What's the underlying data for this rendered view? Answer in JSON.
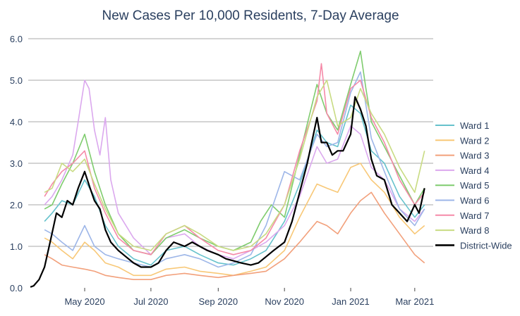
{
  "chart_data": {
    "type": "line",
    "title": "New Cases Per 10,000 Residents, 7-Day Average",
    "xlabel": "",
    "ylabel": "",
    "x_range": [
      "2020-03-10",
      "2021-03-18"
    ],
    "ylim": [
      0,
      6
    ],
    "y_ticks": [
      0,
      1,
      2,
      3,
      4,
      5,
      6
    ],
    "y_tick_labels": [
      "0.0",
      "1.0",
      "2.0",
      "3.0",
      "4.0",
      "5.0",
      "6.0"
    ],
    "x_ticks": [
      "2020-05-01",
      "2020-07-01",
      "2020-09-01",
      "2020-11-01",
      "2021-01-01",
      "2021-03-01"
    ],
    "x_tick_labels": [
      "May 2020",
      "Jul 2020",
      "Sep 2020",
      "Nov 2020",
      "Jan 2021",
      "Mar 2021"
    ],
    "grid": "horizontal",
    "legend_position": "right",
    "series": [
      {
        "name": "Ward 1",
        "color": "#66c2cc",
        "width": 1.6,
        "x": [
          "2020-03-25",
          "2020-04-01",
          "2020-04-10",
          "2020-04-20",
          "2020-05-01",
          "2020-05-10",
          "2020-05-20",
          "2020-06-01",
          "2020-06-15",
          "2020-07-01",
          "2020-07-15",
          "2020-08-01",
          "2020-08-15",
          "2020-09-01",
          "2020-09-15",
          "2020-10-01",
          "2020-10-15",
          "2020-11-01",
          "2020-11-15",
          "2020-12-01",
          "2020-12-10",
          "2020-12-20",
          "2021-01-01",
          "2021-01-10",
          "2021-01-20",
          "2021-02-01",
          "2021-02-15",
          "2021-03-01",
          "2021-03-10"
        ],
        "y": [
          1.6,
          1.8,
          2.1,
          2.0,
          2.6,
          2.2,
          1.5,
          1.0,
          0.7,
          0.55,
          0.9,
          1.0,
          0.8,
          0.6,
          0.55,
          0.7,
          0.9,
          1.6,
          2.5,
          3.8,
          3.5,
          3.4,
          4.4,
          4.2,
          3.3,
          3.0,
          2.2,
          1.7,
          2.0
        ]
      },
      {
        "name": "Ward 2",
        "color": "#f8c877",
        "width": 1.6,
        "x": [
          "2020-03-25",
          "2020-04-01",
          "2020-04-10",
          "2020-04-20",
          "2020-05-01",
          "2020-05-10",
          "2020-05-20",
          "2020-06-01",
          "2020-06-15",
          "2020-07-01",
          "2020-07-15",
          "2020-08-01",
          "2020-08-15",
          "2020-09-01",
          "2020-09-15",
          "2020-10-01",
          "2020-10-15",
          "2020-11-01",
          "2020-11-15",
          "2020-12-01",
          "2020-12-10",
          "2020-12-20",
          "2021-01-01",
          "2021-01-10",
          "2021-01-20",
          "2021-02-01",
          "2021-02-15",
          "2021-03-01",
          "2021-03-10"
        ],
        "y": [
          1.2,
          1.1,
          0.9,
          0.7,
          1.1,
          0.9,
          0.6,
          0.5,
          0.3,
          0.3,
          0.45,
          0.5,
          0.4,
          0.35,
          0.3,
          0.4,
          0.5,
          0.9,
          1.7,
          2.5,
          2.4,
          2.3,
          2.9,
          3.0,
          2.6,
          2.3,
          1.7,
          1.3,
          1.5
        ]
      },
      {
        "name": "Ward 3",
        "color": "#f2a07b",
        "width": 1.6,
        "x": [
          "2020-03-25",
          "2020-04-01",
          "2020-04-10",
          "2020-04-20",
          "2020-05-01",
          "2020-05-10",
          "2020-05-20",
          "2020-06-01",
          "2020-06-15",
          "2020-07-01",
          "2020-07-15",
          "2020-08-01",
          "2020-08-15",
          "2020-09-01",
          "2020-09-15",
          "2020-10-01",
          "2020-10-15",
          "2020-11-01",
          "2020-11-15",
          "2020-12-01",
          "2020-12-10",
          "2020-12-20",
          "2021-01-01",
          "2021-01-10",
          "2021-01-20",
          "2021-02-01",
          "2021-02-15",
          "2021-03-01",
          "2021-03-10"
        ],
        "y": [
          0.8,
          0.7,
          0.55,
          0.5,
          0.45,
          0.4,
          0.3,
          0.25,
          0.2,
          0.2,
          0.3,
          0.35,
          0.3,
          0.25,
          0.3,
          0.35,
          0.4,
          0.7,
          1.1,
          1.6,
          1.5,
          1.3,
          1.8,
          2.1,
          2.3,
          1.8,
          1.3,
          0.8,
          0.6
        ]
      },
      {
        "name": "Ward 4",
        "color": "#dba8ee",
        "width": 1.6,
        "x": [
          "2020-03-25",
          "2020-04-01",
          "2020-04-10",
          "2020-04-20",
          "2020-04-25",
          "2020-05-01",
          "2020-05-05",
          "2020-05-10",
          "2020-05-15",
          "2020-05-20",
          "2020-05-25",
          "2020-06-01",
          "2020-06-15",
          "2020-07-01",
          "2020-07-15",
          "2020-08-01",
          "2020-08-15",
          "2020-09-01",
          "2020-09-15",
          "2020-10-01",
          "2020-10-15",
          "2020-11-01",
          "2020-11-15",
          "2020-12-01",
          "2020-12-10",
          "2020-12-20",
          "2021-01-01",
          "2021-01-10",
          "2021-01-20",
          "2021-02-01",
          "2021-02-15",
          "2021-03-01",
          "2021-03-10"
        ],
        "y": [
          2.0,
          2.2,
          2.6,
          3.2,
          4.0,
          5.0,
          4.8,
          3.8,
          3.2,
          4.1,
          2.6,
          1.8,
          1.2,
          0.8,
          1.2,
          1.3,
          1.0,
          0.8,
          0.7,
          0.9,
          1.1,
          1.5,
          2.2,
          3.4,
          3.0,
          3.1,
          3.9,
          3.7,
          2.9,
          2.6,
          1.9,
          1.6,
          1.9
        ]
      },
      {
        "name": "Ward 5",
        "color": "#7fcc6e",
        "width": 1.6,
        "x": [
          "2020-03-25",
          "2020-04-01",
          "2020-04-10",
          "2020-04-20",
          "2020-05-01",
          "2020-05-10",
          "2020-05-20",
          "2020-06-01",
          "2020-06-15",
          "2020-07-01",
          "2020-07-15",
          "2020-08-01",
          "2020-08-15",
          "2020-09-01",
          "2020-09-15",
          "2020-10-01",
          "2020-10-10",
          "2020-10-20",
          "2020-11-01",
          "2020-11-15",
          "2020-12-01",
          "2020-12-10",
          "2020-12-20",
          "2021-01-01",
          "2021-01-10",
          "2021-01-15",
          "2021-01-20",
          "2021-02-01",
          "2021-02-15",
          "2021-03-01",
          "2021-03-10"
        ],
        "y": [
          1.9,
          2.0,
          2.5,
          3.0,
          3.7,
          2.8,
          2.0,
          1.3,
          0.9,
          0.8,
          1.2,
          1.4,
          1.2,
          1.0,
          0.9,
          1.1,
          1.6,
          2.0,
          1.7,
          3.2,
          4.9,
          4.2,
          3.8,
          4.9,
          5.7,
          4.8,
          4.0,
          3.4,
          2.7,
          2.0,
          2.4
        ]
      },
      {
        "name": "Ward 6",
        "color": "#9db6e8",
        "width": 1.6,
        "x": [
          "2020-03-25",
          "2020-04-01",
          "2020-04-10",
          "2020-04-20",
          "2020-05-01",
          "2020-05-10",
          "2020-05-20",
          "2020-06-01",
          "2020-06-15",
          "2020-07-01",
          "2020-07-15",
          "2020-08-01",
          "2020-08-15",
          "2020-09-01",
          "2020-09-15",
          "2020-10-01",
          "2020-10-15",
          "2020-11-01",
          "2020-11-15",
          "2020-12-01",
          "2020-12-10",
          "2020-12-20",
          "2021-01-01",
          "2021-01-10",
          "2021-01-20",
          "2021-02-01",
          "2021-02-15",
          "2021-03-01",
          "2021-03-10"
        ],
        "y": [
          1.4,
          1.3,
          1.1,
          0.9,
          1.5,
          1.0,
          0.8,
          0.7,
          0.6,
          0.5,
          0.7,
          0.8,
          0.7,
          0.5,
          0.6,
          0.8,
          1.5,
          2.8,
          2.6,
          3.7,
          3.4,
          3.5,
          4.7,
          5.2,
          3.6,
          2.8,
          1.9,
          1.5,
          1.9
        ]
      },
      {
        "name": "Ward 7",
        "color": "#f58aa8",
        "width": 1.6,
        "x": [
          "2020-03-25",
          "2020-04-01",
          "2020-04-10",
          "2020-04-20",
          "2020-05-01",
          "2020-05-10",
          "2020-05-20",
          "2020-06-01",
          "2020-06-15",
          "2020-07-01",
          "2020-07-15",
          "2020-08-01",
          "2020-08-15",
          "2020-09-01",
          "2020-09-15",
          "2020-10-01",
          "2020-10-15",
          "2020-11-01",
          "2020-11-15",
          "2020-12-01",
          "2020-12-05",
          "2020-12-10",
          "2020-12-20",
          "2021-01-01",
          "2021-01-10",
          "2021-01-20",
          "2021-02-01",
          "2021-02-15",
          "2021-03-01",
          "2021-03-10"
        ],
        "y": [
          2.2,
          2.5,
          2.8,
          3.0,
          3.3,
          2.4,
          1.8,
          1.2,
          0.9,
          0.8,
          1.3,
          1.5,
          1.2,
          0.9,
          0.8,
          0.9,
          1.2,
          2.0,
          3.3,
          4.5,
          5.4,
          4.2,
          3.7,
          4.8,
          5.0,
          4.1,
          3.5,
          2.6,
          2.0,
          2.3
        ]
      },
      {
        "name": "Ward 8",
        "color": "#c8db82",
        "width": 1.6,
        "x": [
          "2020-03-25",
          "2020-04-01",
          "2020-04-10",
          "2020-04-20",
          "2020-05-01",
          "2020-05-10",
          "2020-05-20",
          "2020-06-01",
          "2020-06-15",
          "2020-07-01",
          "2020-07-15",
          "2020-08-01",
          "2020-08-15",
          "2020-09-01",
          "2020-09-15",
          "2020-10-01",
          "2020-10-15",
          "2020-11-01",
          "2020-11-15",
          "2020-12-01",
          "2020-12-10",
          "2020-12-20",
          "2021-01-01",
          "2021-01-10",
          "2021-01-20",
          "2021-02-01",
          "2021-02-15",
          "2021-03-01",
          "2021-03-10"
        ],
        "y": [
          2.3,
          2.4,
          3.0,
          2.8,
          3.1,
          2.5,
          1.9,
          1.3,
          1.0,
          0.9,
          1.3,
          1.5,
          1.3,
          1.0,
          0.9,
          1.0,
          1.3,
          2.0,
          3.1,
          4.6,
          5.0,
          3.9,
          4.1,
          4.8,
          4.2,
          3.7,
          2.9,
          2.3,
          3.3
        ]
      },
      {
        "name": "District-Wide",
        "color": "#000000",
        "width": 2.2,
        "x": [
          "2020-03-12",
          "2020-03-15",
          "2020-03-20",
          "2020-03-25",
          "2020-03-31",
          "2020-04-05",
          "2020-04-10",
          "2020-04-15",
          "2020-04-20",
          "2020-04-25",
          "2020-05-01",
          "2020-05-06",
          "2020-05-10",
          "2020-05-15",
          "2020-05-20",
          "2020-05-25",
          "2020-06-01",
          "2020-06-08",
          "2020-06-15",
          "2020-06-22",
          "2020-07-01",
          "2020-07-08",
          "2020-07-15",
          "2020-07-22",
          "2020-08-01",
          "2020-08-08",
          "2020-08-15",
          "2020-08-22",
          "2020-09-01",
          "2020-09-08",
          "2020-09-15",
          "2020-09-22",
          "2020-10-01",
          "2020-10-08",
          "2020-10-15",
          "2020-10-22",
          "2020-11-01",
          "2020-11-08",
          "2020-11-15",
          "2020-11-22",
          "2020-12-01",
          "2020-12-05",
          "2020-12-10",
          "2020-12-15",
          "2020-12-20",
          "2020-12-25",
          "2021-01-01",
          "2021-01-05",
          "2021-01-10",
          "2021-01-15",
          "2021-01-20",
          "2021-01-25",
          "2021-02-01",
          "2021-02-08",
          "2021-02-15",
          "2021-02-22",
          "2021-03-01",
          "2021-03-05",
          "2021-03-10"
        ],
        "y": [
          0.02,
          0.05,
          0.2,
          0.5,
          1.2,
          1.8,
          1.7,
          2.1,
          2.0,
          2.4,
          2.8,
          2.4,
          2.1,
          1.9,
          1.4,
          1.1,
          0.9,
          0.75,
          0.6,
          0.5,
          0.5,
          0.6,
          0.9,
          1.1,
          1.0,
          1.1,
          1.0,
          0.9,
          0.8,
          0.7,
          0.65,
          0.6,
          0.55,
          0.6,
          0.75,
          0.9,
          1.1,
          1.6,
          2.3,
          3.0,
          4.1,
          3.5,
          3.5,
          3.2,
          3.3,
          3.3,
          3.7,
          4.6,
          4.3,
          3.9,
          3.1,
          2.7,
          2.6,
          2.0,
          1.8,
          1.6,
          2.0,
          1.8,
          2.4
        ]
      }
    ]
  }
}
